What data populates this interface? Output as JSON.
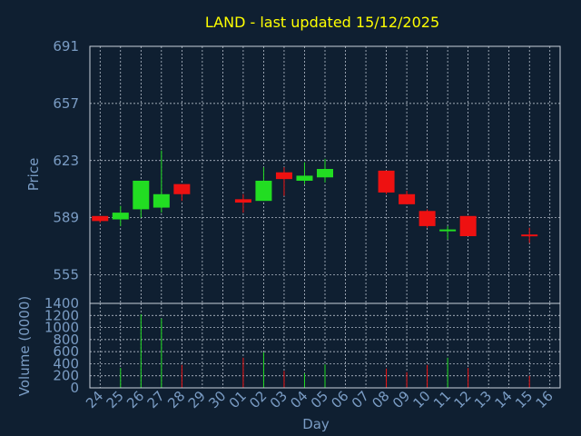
{
  "chart_data": [
    {
      "type": "candlestick",
      "title": "LAND - last updated 15/12/2025",
      "ylabel": "Price",
      "ylim": [
        538,
        691
      ],
      "yticks": [
        555,
        589,
        623,
        657,
        691
      ],
      "grid": true,
      "colors": {
        "up": "#22dd22",
        "down": "#ee1111"
      },
      "candles": [
        {
          "day": "24",
          "open": 590,
          "high": 590,
          "low": 586,
          "close": 587
        },
        {
          "day": "25",
          "open": 588,
          "high": 596,
          "low": 584,
          "close": 592
        },
        {
          "day": "26",
          "open": 594,
          "high": 611,
          "low": 589,
          "close": 611
        },
        {
          "day": "27",
          "open": 595,
          "high": 629,
          "low": 592,
          "close": 603
        },
        {
          "day": "28",
          "open": 609,
          "high": 609,
          "low": 599,
          "close": 603
        },
        {
          "day": "01",
          "open": 600,
          "high": 603,
          "low": 592,
          "close": 598
        },
        {
          "day": "02",
          "open": 599,
          "high": 619,
          "low": 599,
          "close": 611
        },
        {
          "day": "03",
          "open": 616,
          "high": 619,
          "low": 602,
          "close": 612
        },
        {
          "day": "04",
          "open": 611,
          "high": 622,
          "low": 609,
          "close": 614
        },
        {
          "day": "05",
          "open": 613,
          "high": 624,
          "low": 610,
          "close": 618
        },
        {
          "day": "08",
          "open": 617,
          "high": 617,
          "low": 603,
          "close": 604
        },
        {
          "day": "09",
          "open": 603,
          "high": 605,
          "low": 597,
          "close": 597
        },
        {
          "day": "10",
          "open": 593,
          "high": 594,
          "low": 583,
          "close": 584
        },
        {
          "day": "11",
          "open": 581,
          "high": 584,
          "low": 576,
          "close": 582
        },
        {
          "day": "12",
          "open": 590,
          "high": 590,
          "low": 578,
          "close": 578
        },
        {
          "day": "15",
          "open": 579,
          "high": 583,
          "low": 574,
          "close": 578
        }
      ]
    },
    {
      "type": "bar",
      "ylabel": "Volume (0000)",
      "xlabel": "Day",
      "ylim": [
        0,
        1400
      ],
      "yticks": [
        0,
        200,
        400,
        600,
        800,
        1000,
        1200,
        1400
      ],
      "categories": [
        "24",
        "25",
        "26",
        "27",
        "28",
        "29",
        "30",
        "01",
        "02",
        "03",
        "04",
        "05",
        "06",
        "07",
        "08",
        "09",
        "10",
        "11",
        "12",
        "13",
        "14",
        "15",
        "16"
      ],
      "values": [
        0,
        330,
        1220,
        1150,
        380,
        0,
        0,
        500,
        590,
        280,
        240,
        390,
        0,
        0,
        320,
        260,
        380,
        500,
        330,
        0,
        0,
        200,
        0
      ],
      "bar_direction": [
        "",
        "up",
        "up",
        "up",
        "down",
        "",
        "",
        "down",
        "up",
        "down",
        "up",
        "up",
        "",
        "",
        "down",
        "down",
        "down",
        "up",
        "down",
        "",
        "",
        "down",
        ""
      ]
    }
  ]
}
